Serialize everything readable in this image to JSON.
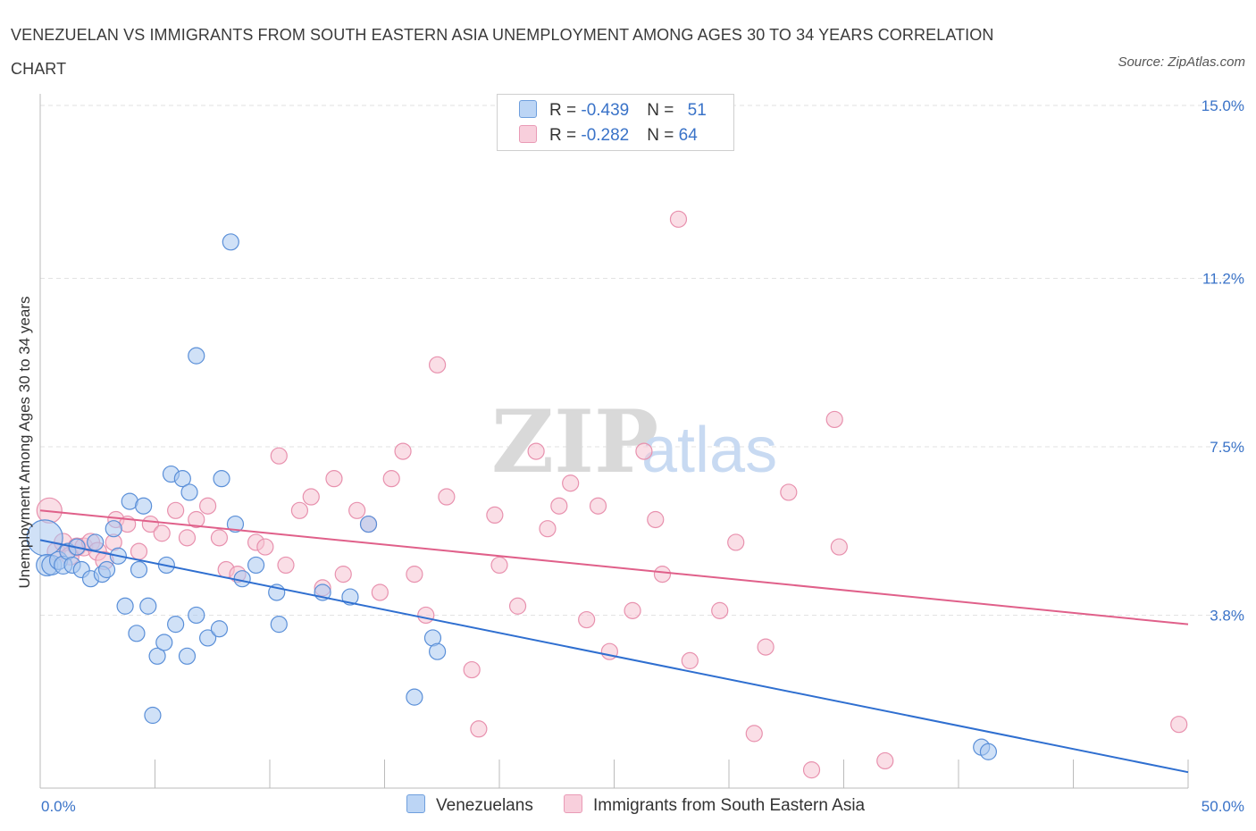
{
  "title": "VENEZUELAN VS IMMIGRANTS FROM SOUTH EASTERN ASIA UNEMPLOYMENT AMONG AGES 30 TO 34 YEARS CORRELATION CHART",
  "source": "Source: ZipAtlas.com",
  "watermark": {
    "zip": "ZIP",
    "atlas": "atlas"
  },
  "legend": {
    "rows": [
      {
        "r_label": "R = ",
        "r_value": "-0.439",
        "n_label": "N = ",
        "n_value": "51"
      },
      {
        "r_label": "R = ",
        "r_value": "-0.282",
        "n_label": "N = ",
        "n_value": "64"
      }
    ]
  },
  "colors": {
    "blue_fill": "#aac8f0",
    "blue_stroke": "#5a8fd8",
    "blue_line": "#2f6fd0",
    "pink_fill": "#f6c2d2",
    "pink_stroke": "#e891ae",
    "pink_line": "#e0608a",
    "tick_label": "#3a73c8",
    "grid": "#e2e2e2"
  },
  "chart_data": {
    "type": "scatter",
    "title": "VENEZUELAN VS IMMIGRANTS FROM SOUTH EASTERN ASIA UNEMPLOYMENT AMONG AGES 30 TO 34 YEARS CORRELATION CHART",
    "xlabel": "",
    "ylabel": "Unemployment Among Ages 30 to 34 years",
    "xlim": [
      0,
      50
    ],
    "ylim": [
      0,
      15
    ],
    "x_tick_labels": [
      "0.0%",
      "50.0%"
    ],
    "y_ticks": [
      3.8,
      7.5,
      11.2,
      15.0
    ],
    "y_tick_labels": [
      "3.8%",
      "7.5%",
      "11.2%",
      "15.0%"
    ],
    "grid": "horizontal dashed",
    "legend_position": "bottom-center",
    "series": [
      {
        "name": "Venezuelans",
        "r": -0.439,
        "n": 51,
        "trend": [
          [
            0,
            5.45
          ],
          [
            50,
            0.35
          ]
        ],
        "points": [
          [
            0.2,
            5.5,
            20
          ],
          [
            0.3,
            4.9,
            12
          ],
          [
            0.5,
            4.9,
            11
          ],
          [
            0.8,
            5.0,
            10
          ],
          [
            1.0,
            4.9,
            10
          ],
          [
            1.2,
            5.2,
            9
          ],
          [
            1.4,
            4.9,
            9
          ],
          [
            1.6,
            5.3,
            9
          ],
          [
            1.8,
            4.8,
            9
          ],
          [
            2.2,
            4.6,
            9
          ],
          [
            2.4,
            5.4,
            9
          ],
          [
            2.7,
            4.7,
            9
          ],
          [
            2.9,
            4.8,
            9
          ],
          [
            3.2,
            5.7,
            9
          ],
          [
            3.4,
            5.1,
            9
          ],
          [
            3.7,
            4.0,
            9
          ],
          [
            3.9,
            6.3,
            9
          ],
          [
            4.2,
            3.4,
            9
          ],
          [
            4.3,
            4.8,
            9
          ],
          [
            4.5,
            6.2,
            9
          ],
          [
            4.7,
            4.0,
            9
          ],
          [
            4.9,
            1.6,
            9
          ],
          [
            5.1,
            2.9,
            9
          ],
          [
            5.4,
            3.2,
            9
          ],
          [
            5.5,
            4.9,
            9
          ],
          [
            5.7,
            6.9,
            9
          ],
          [
            5.9,
            3.6,
            9
          ],
          [
            6.2,
            6.8,
            9
          ],
          [
            6.4,
            2.9,
            9
          ],
          [
            6.5,
            6.5,
            9
          ],
          [
            6.8,
            3.8,
            9
          ],
          [
            7.3,
            3.3,
            9
          ],
          [
            7.8,
            3.5,
            9
          ],
          [
            7.9,
            6.8,
            9
          ],
          [
            8.3,
            12.0,
            9
          ],
          [
            8.5,
            5.8,
            9
          ],
          [
            8.8,
            4.6,
            9
          ],
          [
            9.4,
            4.9,
            9
          ],
          [
            10.3,
            4.3,
            9
          ],
          [
            10.4,
            3.6,
            9
          ],
          [
            12.3,
            4.3,
            9
          ],
          [
            13.5,
            4.2,
            9
          ],
          [
            14.3,
            5.8,
            9
          ],
          [
            16.3,
            2.0,
            9
          ],
          [
            17.1,
            3.3,
            9
          ],
          [
            17.3,
            3.0,
            9
          ],
          [
            41.0,
            0.9,
            9
          ],
          [
            41.3,
            0.8,
            9
          ],
          [
            6.8,
            9.5,
            9
          ]
        ]
      },
      {
        "name": "Immigrants from South Eastern Asia",
        "r": -0.282,
        "n": 64,
        "trend": [
          [
            0,
            6.1
          ],
          [
            50,
            3.6
          ]
        ],
        "points": [
          [
            0.4,
            6.1,
            14
          ],
          [
            0.7,
            5.2,
            10
          ],
          [
            1.0,
            5.4,
            10
          ],
          [
            1.3,
            5.1,
            10
          ],
          [
            1.6,
            5.3,
            10
          ],
          [
            1.9,
            5.3,
            10
          ],
          [
            2.2,
            5.4,
            10
          ],
          [
            2.5,
            5.2,
            10
          ],
          [
            2.8,
            5.0,
            10
          ],
          [
            3.2,
            5.4,
            9
          ],
          [
            3.3,
            5.9,
            9
          ],
          [
            3.8,
            5.8,
            9
          ],
          [
            4.3,
            5.2,
            9
          ],
          [
            4.8,
            5.8,
            9
          ],
          [
            5.3,
            5.6,
            9
          ],
          [
            5.9,
            6.1,
            9
          ],
          [
            6.4,
            5.5,
            9
          ],
          [
            6.8,
            5.9,
            9
          ],
          [
            7.3,
            6.2,
            9
          ],
          [
            7.8,
            5.5,
            9
          ],
          [
            8.1,
            4.8,
            9
          ],
          [
            8.6,
            4.7,
            9
          ],
          [
            9.4,
            5.4,
            9
          ],
          [
            9.8,
            5.3,
            9
          ],
          [
            10.4,
            7.3,
            9
          ],
          [
            10.7,
            4.9,
            9
          ],
          [
            11.3,
            6.1,
            9
          ],
          [
            11.8,
            6.4,
            9
          ],
          [
            12.3,
            4.4,
            9
          ],
          [
            12.8,
            6.8,
            9
          ],
          [
            13.2,
            4.7,
            9
          ],
          [
            13.8,
            6.1,
            9
          ],
          [
            14.3,
            5.8,
            9
          ],
          [
            14.8,
            4.3,
            9
          ],
          [
            15.3,
            6.8,
            9
          ],
          [
            15.8,
            7.4,
            9
          ],
          [
            16.3,
            4.7,
            9
          ],
          [
            16.8,
            3.8,
            9
          ],
          [
            17.3,
            9.3,
            9
          ],
          [
            17.7,
            6.4,
            9
          ],
          [
            18.8,
            2.6,
            9
          ],
          [
            19.1,
            1.3,
            9
          ],
          [
            19.8,
            6.0,
            9
          ],
          [
            20.0,
            4.9,
            9
          ],
          [
            20.8,
            4.0,
            9
          ],
          [
            21.6,
            7.4,
            9
          ],
          [
            22.1,
            5.7,
            9
          ],
          [
            22.6,
            6.2,
            9
          ],
          [
            23.1,
            6.7,
            9
          ],
          [
            23.8,
            3.7,
            9
          ],
          [
            24.3,
            6.2,
            9
          ],
          [
            24.8,
            3.0,
            9
          ],
          [
            25.8,
            3.9,
            9
          ],
          [
            26.3,
            7.4,
            9
          ],
          [
            26.8,
            5.9,
            9
          ],
          [
            27.1,
            4.7,
            9
          ],
          [
            27.8,
            12.5,
            9
          ],
          [
            28.3,
            2.8,
            9
          ],
          [
            29.6,
            3.9,
            9
          ],
          [
            30.3,
            5.4,
            9
          ],
          [
            31.1,
            1.2,
            9
          ],
          [
            31.6,
            3.1,
            9
          ],
          [
            32.6,
            6.5,
            9
          ],
          [
            33.6,
            0.4,
            9
          ],
          [
            34.6,
            8.1,
            9
          ],
          [
            34.8,
            5.3,
            9
          ],
          [
            36.8,
            0.6,
            9
          ],
          [
            49.6,
            1.4,
            9
          ]
        ]
      }
    ]
  }
}
